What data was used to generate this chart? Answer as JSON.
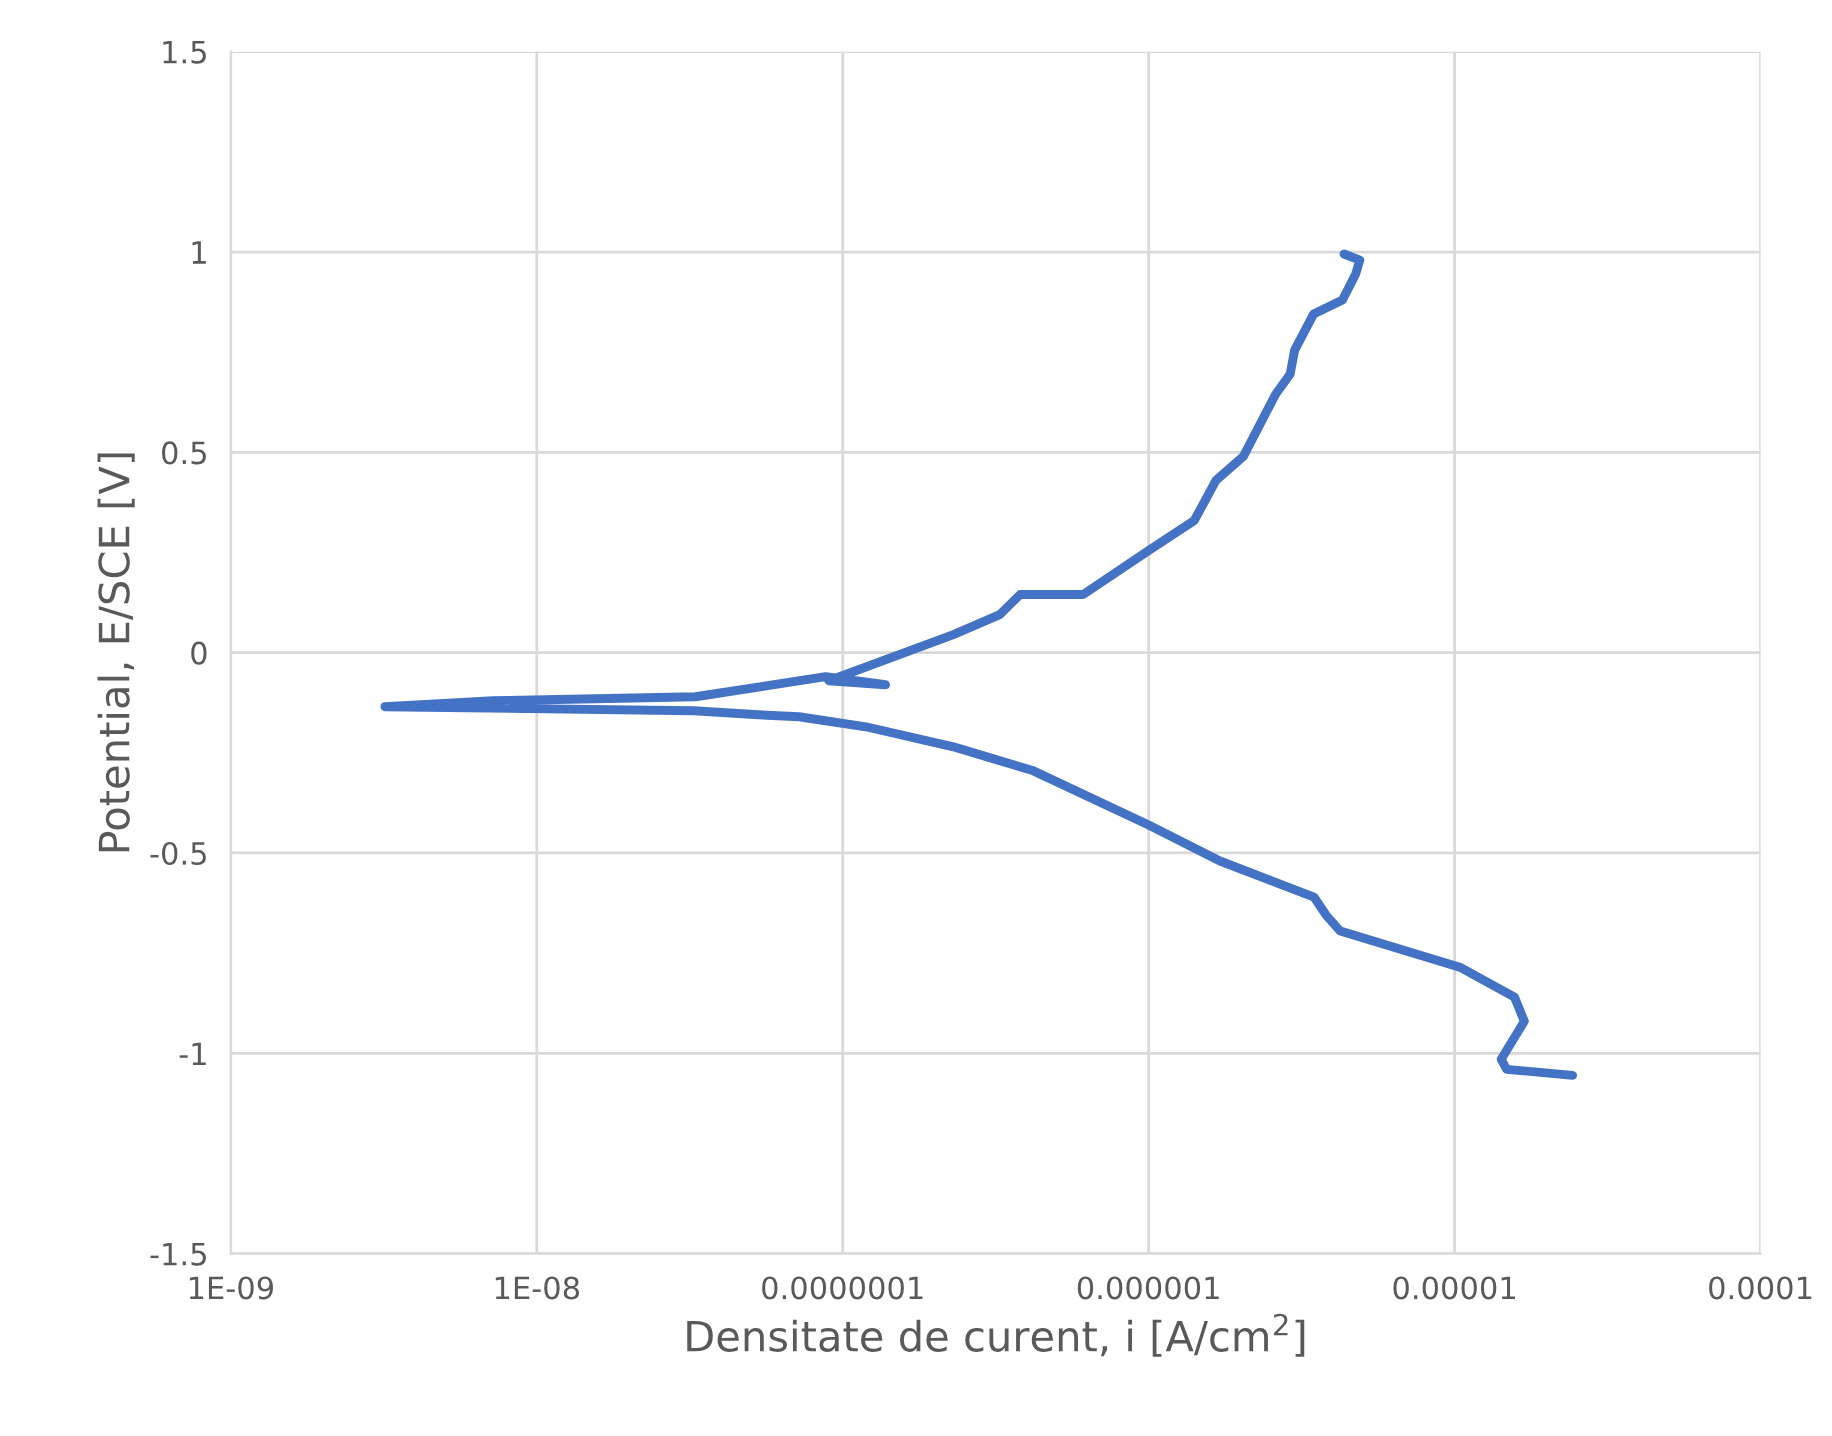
{
  "chart_data": {
    "type": "line",
    "xlabel": "Densitate de curent, i [A/cm$^{2}$]",
    "ylabel": "Potential, E/SCE [V]",
    "log": "x",
    "grid": true,
    "legend": false,
    "marker": "none",
    "line_style": "solid",
    "xlim": [
      1e-09,
      0.0001
    ],
    "xticks": [
      {
        "value": 1e-09,
        "label": "1E-09"
      },
      {
        "value": 1e-08,
        "label": "1E-08"
      },
      {
        "value": 1e-07,
        "label": "0.0000001"
      },
      {
        "value": 1e-06,
        "label": "0.000001"
      },
      {
        "value": 1e-05,
        "label": "0.00001"
      },
      {
        "value": 0.0001,
        "label": "0.0001"
      }
    ],
    "ylim": [
      -1.5,
      1.5
    ],
    "yticks": [
      {
        "value": -1.5,
        "label": "-1.5"
      },
      {
        "value": -1,
        "label": "-1"
      },
      {
        "value": -0.5,
        "label": "-0.5"
      },
      0,
      0.5,
      1,
      1.5
    ],
    "series": [
      {
        "color": "#4472c4",
        "x": [
          2.43e-05,
          1.48e-05,
          1.42e-05,
          1.69e-05,
          1.57e-05,
          1.04e-05,
          4.23e-06,
          3.8e-06,
          3.47e-06,
          1.71e-06,
          1e-06,
          4.2e-07,
          2.3e-07,
          1.19e-07,
          7.2e-08,
          5.3e-08,
          3.26e-08,
          3.19e-09,
          7.2e-09,
          3.3e-08,
          8.8e-08,
          1.38e-07,
          9e-08,
          2.3e-07,
          3.26e-07,
          3.8e-07,
          6.1e-07,
          1e-06,
          1.41e-06,
          1.66e-06,
          2.04e-06,
          2.6e-06,
          2.9e-06,
          3e-06,
          3.46e-06,
          4.3e-06,
          4.75e-06,
          4.9e-06,
          4.35e-06
        ],
        "values": [
          -1.055,
          -1.04,
          -1.015,
          -0.92,
          -0.86,
          -0.785,
          -0.695,
          -0.655,
          -0.61,
          -0.52,
          -0.43,
          -0.295,
          -0.235,
          -0.185,
          -0.16,
          -0.155,
          -0.145,
          -0.135,
          -0.12,
          -0.11,
          -0.06,
          -0.08,
          -0.07,
          0.045,
          0.095,
          0.145,
          0.145,
          0.255,
          0.33,
          0.43,
          0.49,
          0.645,
          0.695,
          0.755,
          0.845,
          0.88,
          0.945,
          0.98,
          0.995
        ]
      }
    ]
  }
}
